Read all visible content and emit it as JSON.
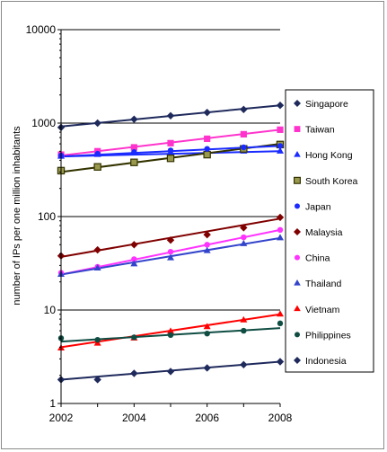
{
  "chart_data": {
    "type": "line",
    "title": "",
    "xlabel": "",
    "ylabel": "number of IPs per one million inhabitants",
    "xlim": [
      2002,
      2008
    ],
    "ylim": [
      1,
      10000
    ],
    "yscale": "log",
    "x": [
      2002,
      2003,
      2004,
      2005,
      2006,
      2007,
      2008
    ],
    "x_ticks": [
      "2002",
      "2004",
      "2006",
      "2008"
    ],
    "y_ticks": [
      "1",
      "10",
      "100",
      "1000",
      "10000"
    ],
    "grid": "horizontal at decades",
    "legend_position": "right",
    "series": [
      {
        "name": "Singapore",
        "color": "#1f2a5c",
        "marker": "diamond",
        "values": [
          900,
          1000,
          1100,
          1200,
          1300,
          1400,
          1550
        ],
        "trend": [
          920,
          1550
        ]
      },
      {
        "name": "Taiwan",
        "color": "#ff33cc",
        "marker": "square",
        "values": [
          460,
          500,
          550,
          610,
          680,
          760,
          850
        ],
        "trend": [
          450,
          850
        ]
      },
      {
        "name": "Hong Kong",
        "color": "#1a2bff",
        "marker": "triangle",
        "values": [
          440,
          460,
          480,
          490,
          500,
          500,
          500
        ],
        "trend": [
          440,
          500
        ]
      },
      {
        "name": "South Korea",
        "color": "#333300",
        "marker": "square-open",
        "values": [
          310,
          340,
          380,
          420,
          460,
          530,
          590
        ],
        "trend": [
          300,
          600
        ]
      },
      {
        "name": "Japan",
        "color": "#1a2bff",
        "marker": "circle",
        "values": [
          450,
          470,
          490,
          510,
          530,
          550,
          570
        ],
        "trend": [
          440,
          570
        ]
      },
      {
        "name": "Malaysia",
        "color": "#800000",
        "marker": "diamond",
        "values": [
          38,
          44,
          50,
          56,
          64,
          76,
          98
        ],
        "trend": [
          37,
          95
        ]
      },
      {
        "name": "China",
        "color": "#ff33ff",
        "marker": "circle",
        "values": [
          25,
          29,
          35,
          42,
          50,
          60,
          72
        ],
        "trend": [
          24,
          72
        ]
      },
      {
        "name": "Thailand",
        "color": "#3344cc",
        "marker": "triangle",
        "values": [
          24,
          28,
          31,
          36,
          43,
          51,
          59
        ],
        "trend": [
          24,
          59
        ]
      },
      {
        "name": "Vietnam",
        "color": "#ff0000",
        "marker": "triangle",
        "values": [
          3.9,
          4.4,
          5.0,
          5.9,
          6.6,
          7.8,
          9.0
        ],
        "trend": [
          4.0,
          9.0
        ]
      },
      {
        "name": "Philippines",
        "color": "#0f4d43",
        "marker": "circle",
        "values": [
          5.0,
          4.8,
          5.1,
          5.4,
          5.6,
          6.0,
          7.2
        ],
        "trend": [
          4.6,
          6.4
        ]
      },
      {
        "name": "Indonesia",
        "color": "#1f2a5c",
        "marker": "diamond",
        "values": [
          1.8,
          1.8,
          2.1,
          2.2,
          2.4,
          2.6,
          2.8
        ],
        "trend": [
          1.8,
          2.8
        ]
      }
    ]
  }
}
